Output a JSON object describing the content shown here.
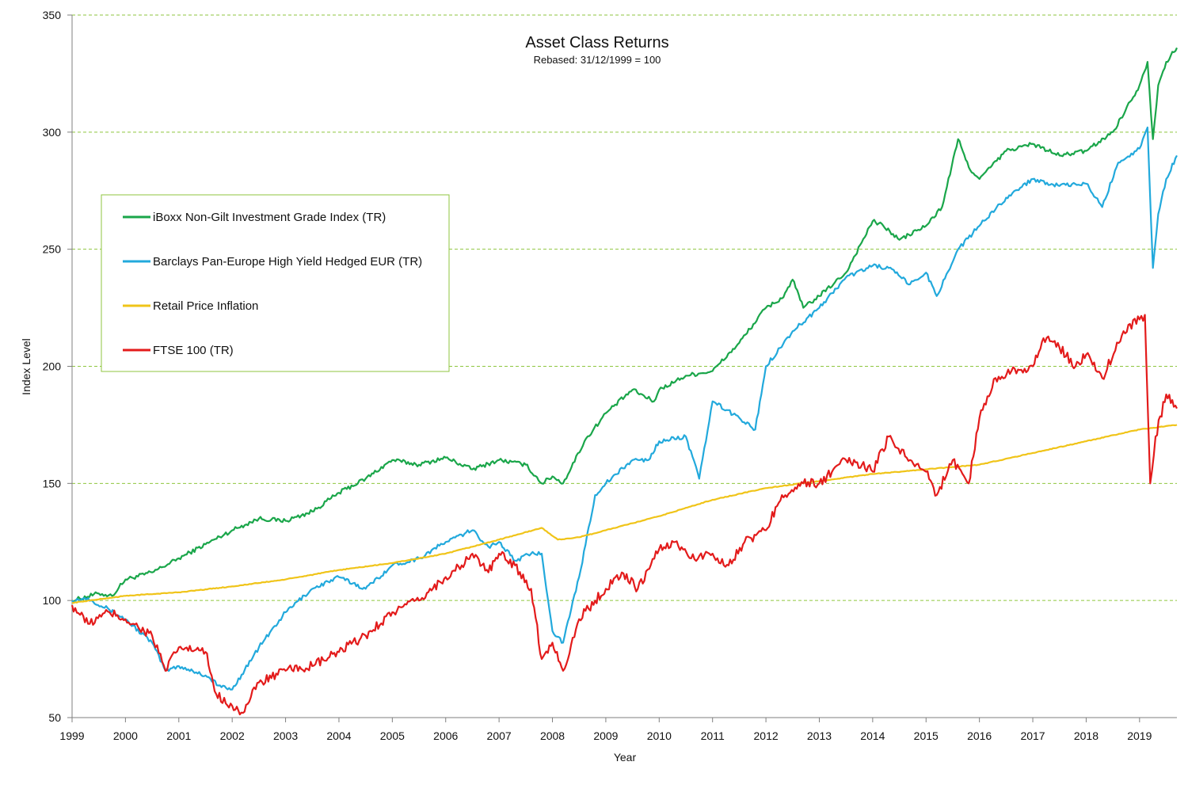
{
  "chart_data": {
    "type": "line",
    "title": "Asset Class Returns",
    "subtitle": "Rebased: 31/12/1999 = 100",
    "xlabel": "Year",
    "ylabel": "Index Level",
    "xlim": [
      1999,
      2019.7
    ],
    "ylim": [
      50,
      350
    ],
    "yticks": [
      50,
      100,
      150,
      200,
      250,
      300,
      350
    ],
    "xticks": [
      "1999",
      "2000",
      "2001",
      "2002",
      "2003",
      "2004",
      "2005",
      "2006",
      "2007",
      "2008",
      "2009",
      "2010",
      "2011",
      "2012",
      "2013",
      "2014",
      "2015",
      "2016",
      "2017",
      "2018",
      "2019"
    ],
    "grid": "horizontal dashed",
    "legend_position": "upper-left",
    "colors": {
      "grid": "#8fc63f",
      "axis": "#7f7f7f",
      "legend_border": "#8fc63f"
    },
    "series": [
      {
        "name": "iBoxx Non-Gilt Investment Grade Index (TR)",
        "color": "#1aa64a",
        "x": [
          1999.0,
          1999.5,
          1999.75,
          2000.0,
          2000.5,
          2001.0,
          2001.5,
          2002.0,
          2002.5,
          2003.0,
          2003.5,
          2004.0,
          2004.5,
          2005.0,
          2005.5,
          2006.0,
          2006.5,
          2007.0,
          2007.5,
          2007.8,
          2008.0,
          2008.2,
          2008.6,
          2009.0,
          2009.5,
          2009.9,
          2010.0,
          2010.5,
          2011.0,
          2011.5,
          2012.0,
          2012.3,
          2012.5,
          2012.7,
          2013.0,
          2013.5,
          2014.0,
          2014.2,
          2014.5,
          2015.0,
          2015.3,
          2015.6,
          2015.8,
          2016.0,
          2016.5,
          2017.0,
          2017.5,
          2018.0,
          2018.5,
          2019.0,
          2019.15,
          2019.25,
          2019.35,
          2019.5,
          2019.7
        ],
        "values": [
          100,
          103,
          102,
          109,
          112,
          118,
          124,
          130,
          135,
          134,
          138,
          146,
          152,
          160,
          158,
          161,
          156,
          160,
          158,
          150,
          153,
          150,
          168,
          180,
          190,
          185,
          190,
          196,
          198,
          210,
          225,
          229,
          237,
          225,
          230,
          240,
          262,
          260,
          254,
          260,
          268,
          297,
          285,
          280,
          292,
          295,
          290,
          292,
          300,
          320,
          330,
          297,
          320,
          330,
          336
        ]
      },
      {
        "name": "Barclays Pan-Europe High Yield Hedged EUR (TR)",
        "color": "#22a9dc",
        "x": [
          1999.0,
          1999.3,
          1999.7,
          2000.0,
          2000.5,
          2000.75,
          2001.0,
          2001.5,
          2001.8,
          2002.0,
          2002.5,
          2003.0,
          2003.5,
          2004.0,
          2004.5,
          2005.0,
          2005.5,
          2006.0,
          2006.5,
          2006.8,
          2007.0,
          2007.3,
          2007.6,
          2007.8,
          2008.0,
          2008.2,
          2008.5,
          2008.8,
          2009.0,
          2009.5,
          2009.8,
          2010.0,
          2010.5,
          2010.75,
          2011.0,
          2011.5,
          2011.8,
          2012.0,
          2012.5,
          2013.0,
          2013.5,
          2014.0,
          2014.3,
          2014.7,
          2015.0,
          2015.2,
          2015.6,
          2016.0,
          2016.5,
          2017.0,
          2017.5,
          2018.0,
          2018.3,
          2018.6,
          2019.0,
          2019.15,
          2019.25,
          2019.35,
          2019.5,
          2019.7
        ],
        "values": [
          100,
          101,
          96,
          92,
          82,
          70,
          72,
          68,
          63,
          62,
          80,
          95,
          105,
          110,
          105,
          115,
          118,
          125,
          130,
          123,
          125,
          117,
          120,
          120,
          87,
          82,
          110,
          145,
          150,
          160,
          160,
          168,
          170,
          152,
          185,
          178,
          173,
          200,
          215,
          225,
          238,
          243,
          242,
          235,
          240,
          230,
          250,
          260,
          272,
          280,
          277,
          278,
          268,
          287,
          293,
          302,
          242,
          265,
          280,
          290
        ]
      },
      {
        "name": "Retail Price Inflation",
        "color": "#f0c419",
        "x": [
          1999.0,
          2000.0,
          2001.0,
          2002.0,
          2003.0,
          2004.0,
          2005.0,
          2006.0,
          2007.0,
          2007.8,
          2008.1,
          2008.5,
          2009.0,
          2010.0,
          2011.0,
          2012.0,
          2013.0,
          2014.0,
          2015.0,
          2015.5,
          2016.0,
          2017.0,
          2018.0,
          2019.0,
          2019.7
        ],
        "values": [
          99,
          102,
          103.5,
          106,
          109,
          113,
          116,
          120,
          126,
          131,
          126,
          127,
          130,
          136,
          143,
          148,
          151,
          154,
          156,
          157,
          158,
          163,
          168,
          173,
          175
        ]
      },
      {
        "name": "FTSE 100 (TR)",
        "color": "#e31b1b",
        "x": [
          1999.0,
          1999.3,
          1999.7,
          2000.0,
          2000.5,
          2000.75,
          2001.0,
          2001.5,
          2001.7,
          2002.0,
          2002.2,
          2002.5,
          2003.0,
          2003.5,
          2004.0,
          2004.5,
          2005.0,
          2005.5,
          2006.0,
          2006.3,
          2006.5,
          2006.8,
          2007.0,
          2007.3,
          2007.6,
          2007.8,
          2008.0,
          2008.2,
          2008.5,
          2008.8,
          2009.0,
          2009.3,
          2009.6,
          2010.0,
          2010.3,
          2010.6,
          2011.0,
          2011.3,
          2011.6,
          2012.0,
          2012.3,
          2012.7,
          2013.0,
          2013.5,
          2013.8,
          2014.0,
          2014.3,
          2014.7,
          2015.0,
          2015.2,
          2015.5,
          2015.8,
          2016.0,
          2016.3,
          2016.6,
          2017.0,
          2017.2,
          2017.5,
          2017.8,
          2018.0,
          2018.3,
          2018.7,
          2019.0,
          2019.1,
          2019.2,
          2019.3,
          2019.5,
          2019.7
        ],
        "values": [
          98,
          90,
          95,
          92,
          85,
          70,
          80,
          78,
          60,
          55,
          52,
          65,
          70,
          72,
          78,
          85,
          95,
          100,
          110,
          115,
          120,
          112,
          120,
          115,
          105,
          75,
          82,
          70,
          92,
          100,
          105,
          112,
          105,
          122,
          125,
          118,
          120,
          115,
          125,
          130,
          145,
          150,
          150,
          160,
          158,
          155,
          170,
          160,
          155,
          145,
          160,
          150,
          178,
          195,
          198,
          200,
          212,
          208,
          200,
          205,
          195,
          215,
          220,
          222,
          150,
          170,
          188,
          182
        ]
      }
    ]
  }
}
